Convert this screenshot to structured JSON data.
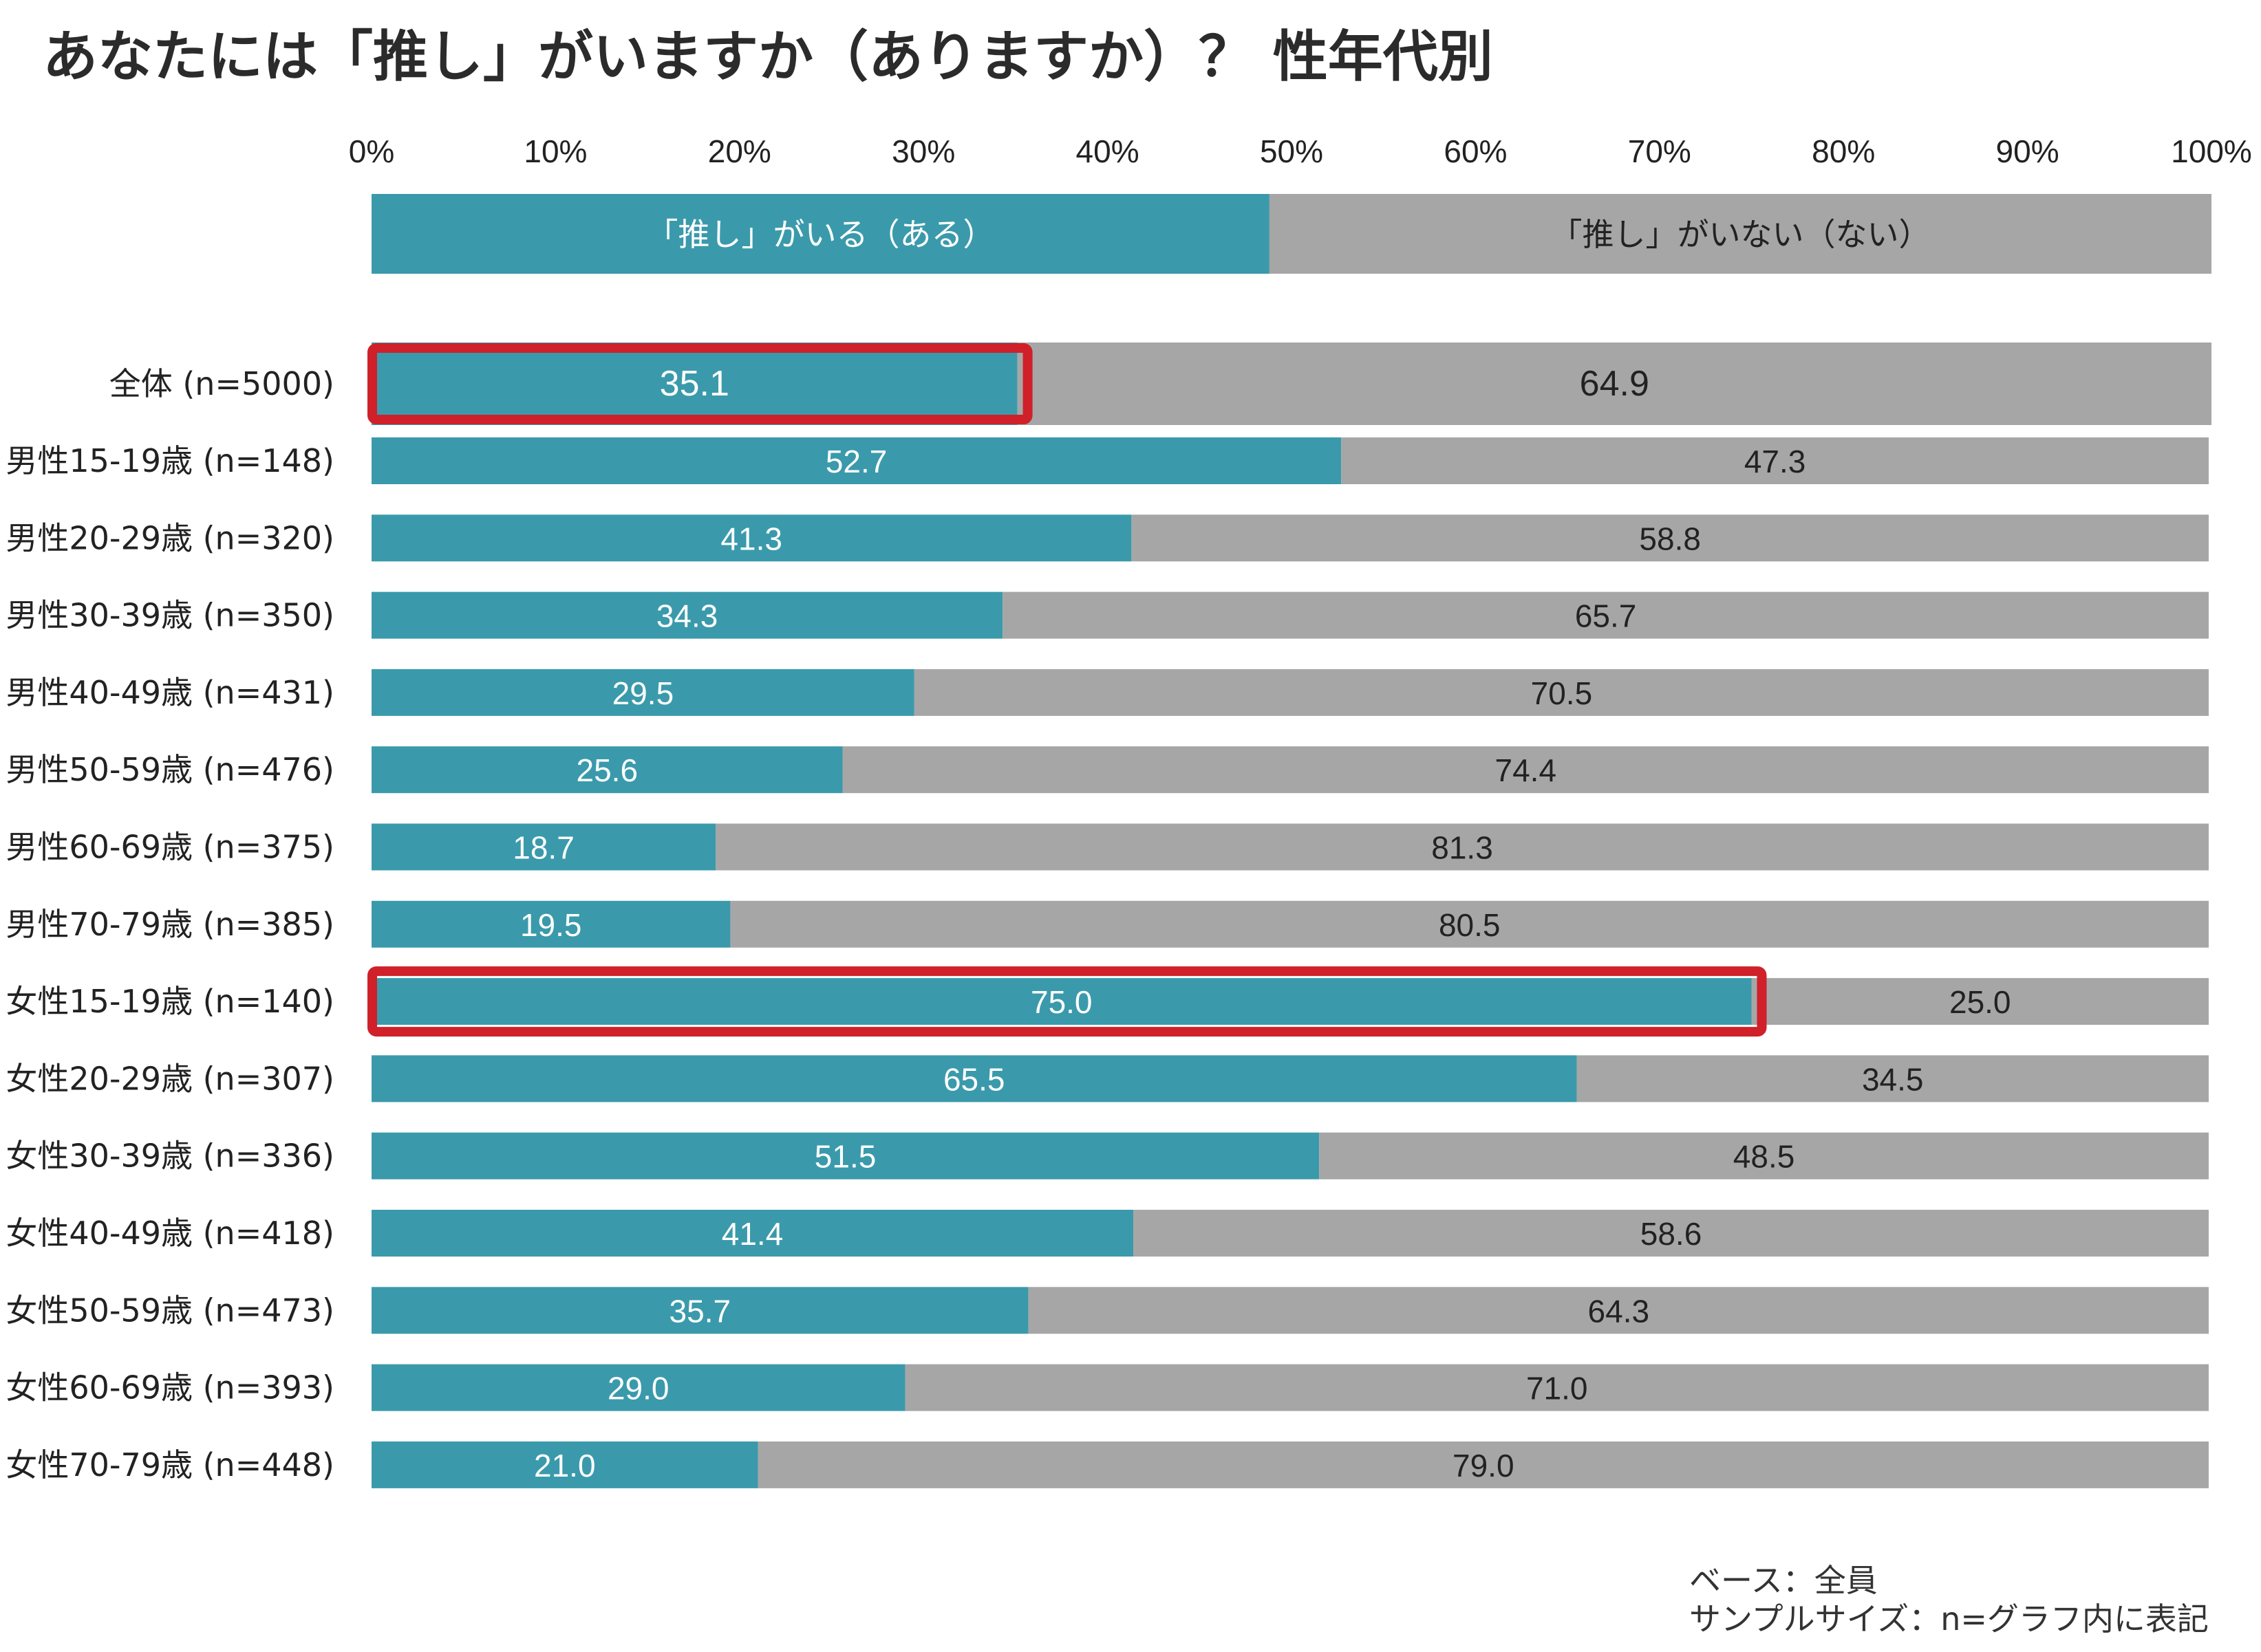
{
  "chart_data": {
    "type": "bar",
    "stacked": true,
    "orientation": "horizontal",
    "title": "あなたには「推し」がいますか（ありますか）？ 性年代別",
    "xlim": [
      0,
      100
    ],
    "x_ticks": [
      "0%",
      "10%",
      "20%",
      "30%",
      "40%",
      "50%",
      "60%",
      "70%",
      "80%",
      "90%",
      "100%"
    ],
    "legend_position": "top",
    "legend": {
      "values": [
        48.8,
        51.2
      ]
    },
    "series": [
      {
        "name": "「推し」がいる（ある）",
        "color": "#3a9aab"
      },
      {
        "name": "「推し」がいない（ない）",
        "color": "#a6a6a6"
      }
    ],
    "categories": [
      "全体 (n=5000)",
      "男性15-19歳 (n=148)",
      "男性20-29歳 (n=320)",
      "男性30-39歳 (n=350)",
      "男性40-49歳 (n=431)",
      "男性50-59歳 (n=476)",
      "男性60-69歳 (n=375)",
      "男性70-79歳 (n=385)",
      "女性15-19歳 (n=140)",
      "女性20-29歳 (n=307)",
      "女性30-39歳 (n=336)",
      "女性40-49歳 (n=418)",
      "女性50-59歳 (n=473)",
      "女性60-69歳 (n=393)",
      "女性70-79歳 (n=448)"
    ],
    "values_yes": [
      35.1,
      52.7,
      41.3,
      34.3,
      29.5,
      25.6,
      18.7,
      19.5,
      75.0,
      65.5,
      51.5,
      41.4,
      35.7,
      29.0,
      21.0
    ],
    "values_no": [
      64.9,
      47.3,
      58.8,
      65.7,
      70.5,
      74.4,
      81.3,
      80.5,
      25.0,
      34.5,
      48.5,
      58.6,
      64.3,
      71.0,
      79.0
    ],
    "labels_yes": [
      "35.1",
      "52.7",
      "41.3",
      "34.3",
      "29.5",
      "25.6",
      "18.7",
      "19.5",
      "75.0",
      "65.5",
      "51.5",
      "41.4",
      "35.7",
      "29.0",
      "21.0"
    ],
    "labels_no": [
      "64.9",
      "47.3",
      "58.8",
      "65.7",
      "70.5",
      "74.4",
      "81.3",
      "80.5",
      "25.0",
      "34.5",
      "48.5",
      "58.6",
      "64.3",
      "71.0",
      "79.0"
    ],
    "highlighted_rows": [
      0,
      8
    ],
    "highlight_color": "#d0202a",
    "label_color_yes": "#ffffff",
    "label_color_no": "#222222"
  },
  "footnotes": {
    "base": "ベース：全員",
    "sample_size": "サンプルサイズ：n=グラフ内に表記"
  }
}
